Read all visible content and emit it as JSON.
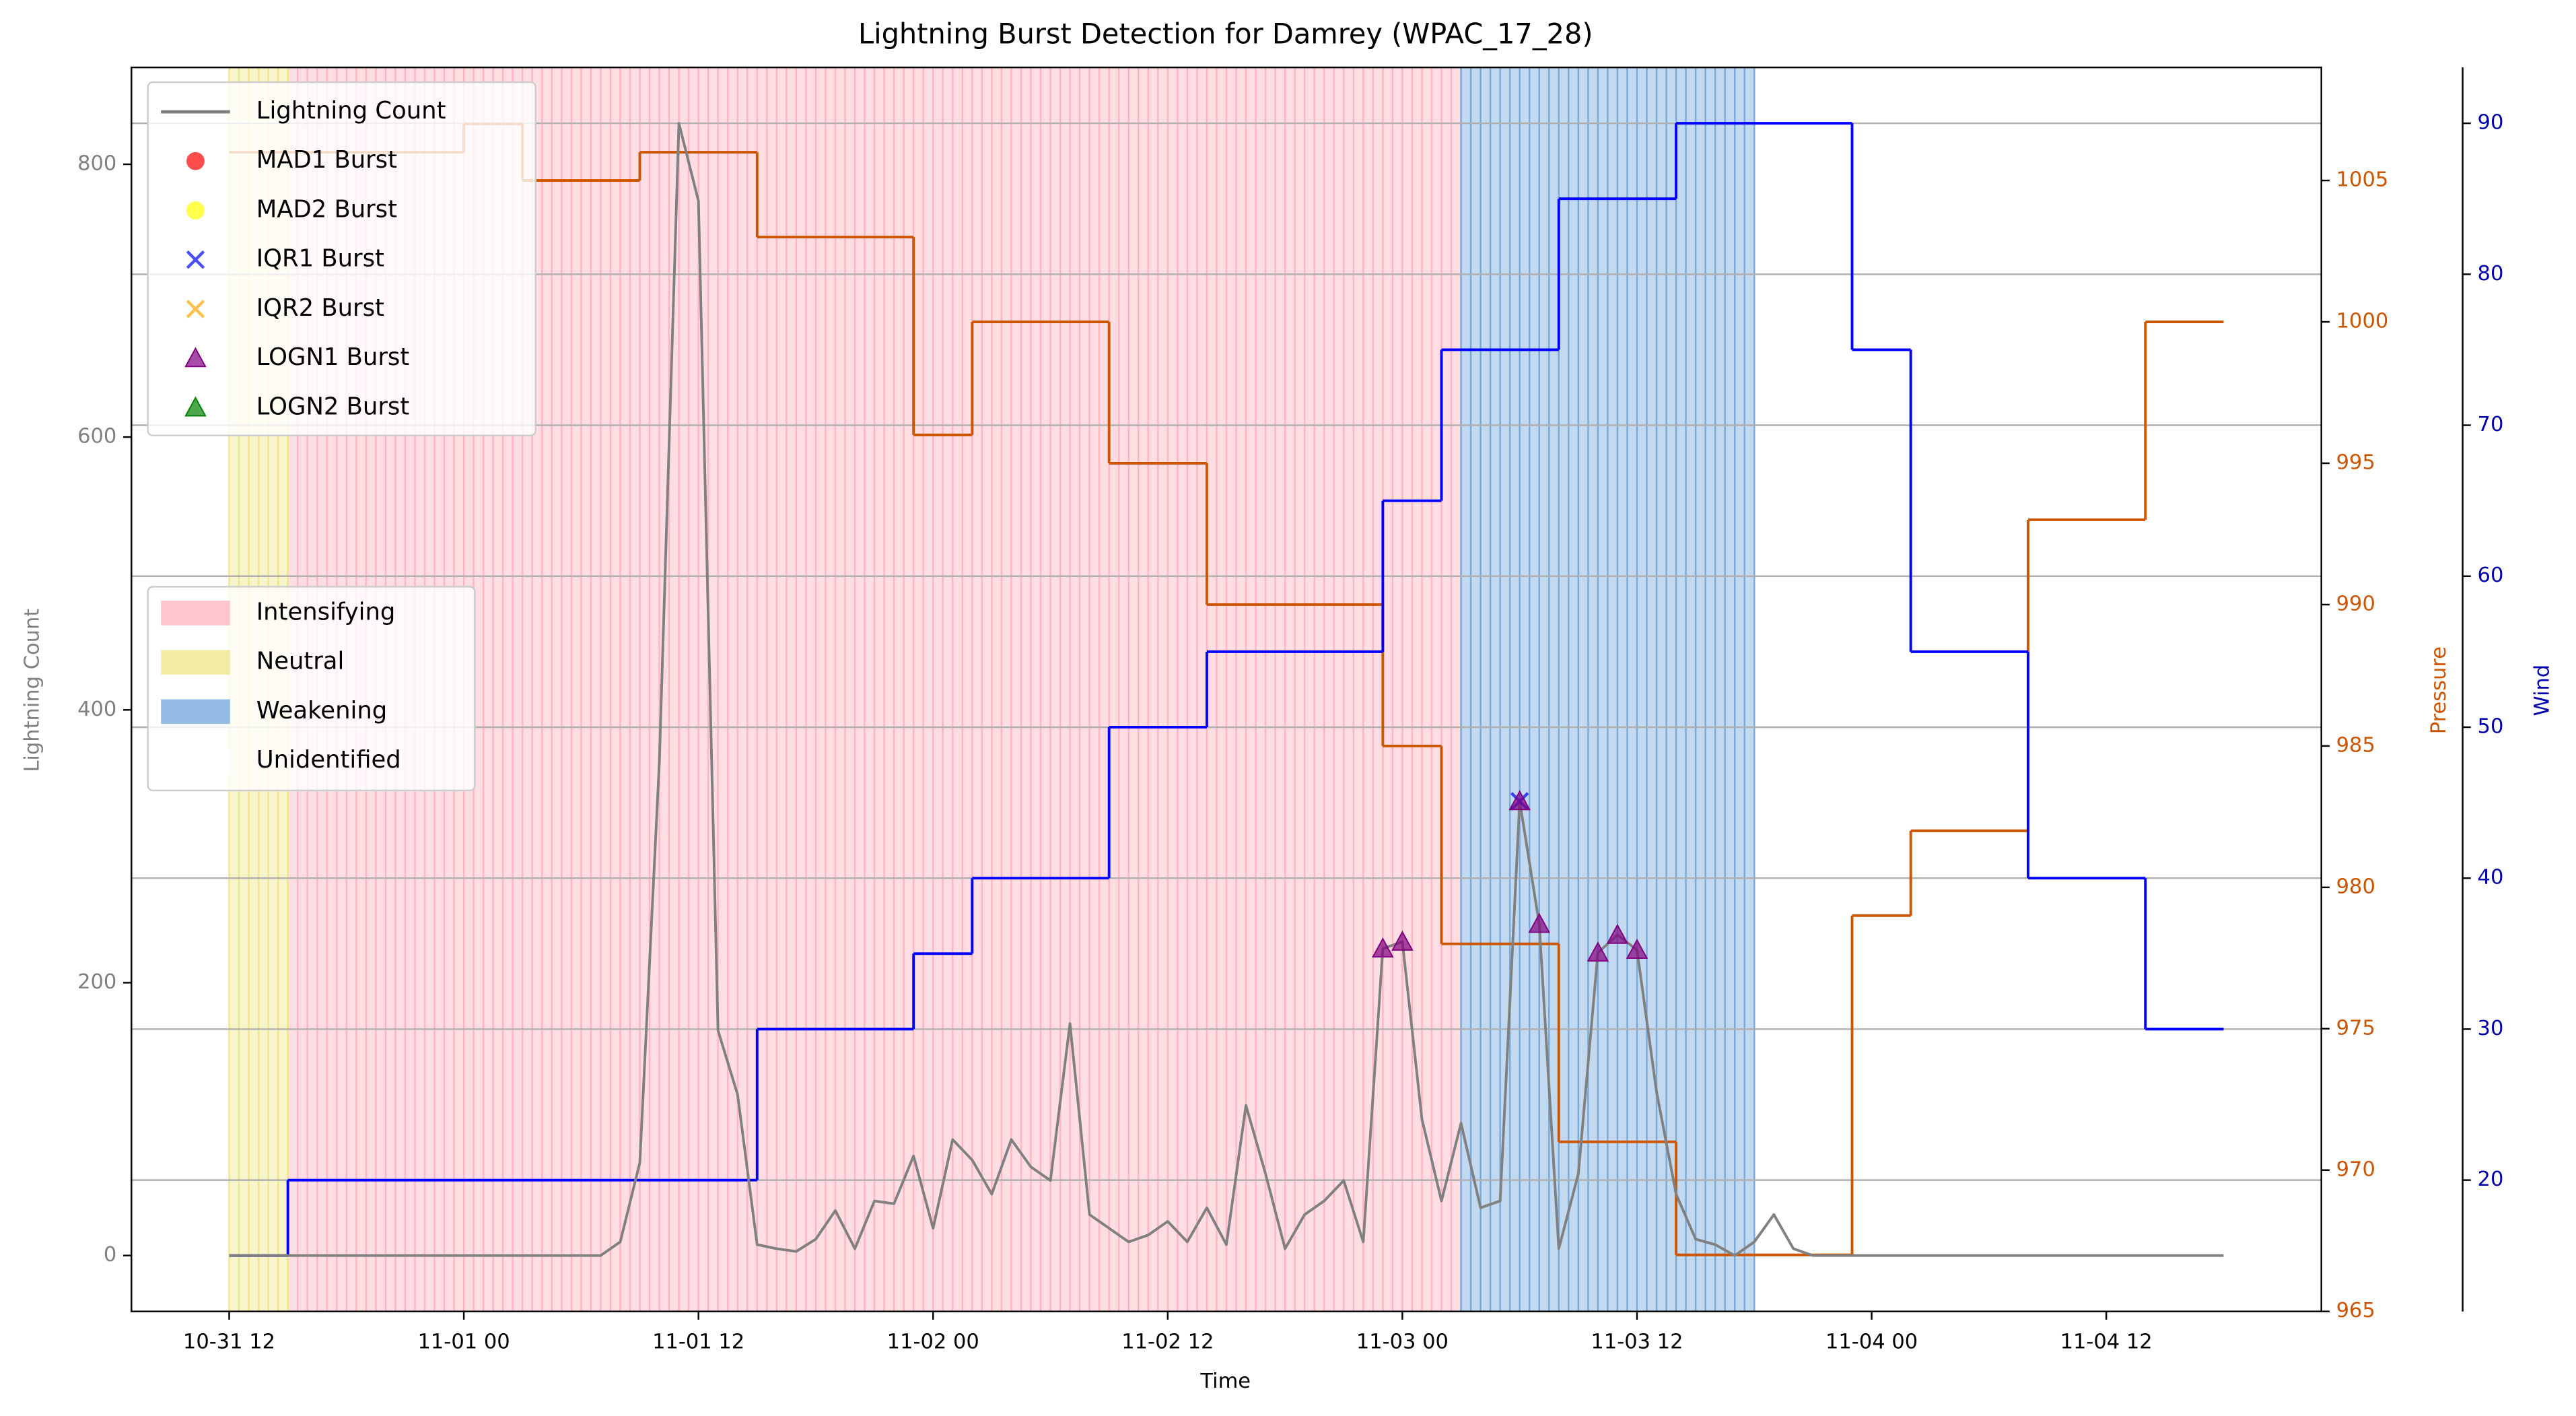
{
  "chart_data": {
    "type": "line",
    "title": "Lightning Burst Detection for Damrey (WPAC_17_28)",
    "xlabel": "Time",
    "ylabel": "Lightning Count",
    "y2label": "Pressure",
    "y3label": "Wind",
    "xlim": [
      "10-31 07",
      "11-04 23"
    ],
    "xticks": [
      "10-31 12",
      "11-01 00",
      "11-01 12",
      "11-02 00",
      "11-02 12",
      "11-03 00",
      "11-03 12",
      "11-04 00",
      "11-04 12"
    ],
    "ylim": [
      -41,
      871
    ],
    "yticks": [
      0,
      200,
      400,
      600,
      800
    ],
    "y2lim": [
      965,
      1009
    ],
    "y2ticks": [
      965,
      970,
      975,
      980,
      985,
      990,
      995,
      1000,
      1005
    ],
    "y3lim": [
      11.3,
      93.7
    ],
    "y3ticks": [
      20,
      30,
      40,
      50,
      60,
      70,
      80,
      90
    ],
    "grid": "y3",
    "series": [
      {
        "name": "Lightning Count",
        "color": "#808080",
        "marker": "line",
        "x": [
          "10-31 12",
          "10-31 13",
          "10-31 14",
          "10-31 15",
          "10-31 16",
          "10-31 17",
          "10-31 18",
          "10-31 19",
          "10-31 20",
          "10-31 21",
          "10-31 22",
          "10-31 23",
          "11-01 00",
          "11-01 01",
          "11-01 02",
          "11-01 03",
          "11-01 04",
          "11-01 05",
          "11-01 06",
          "11-01 07",
          "11-01 08",
          "11-01 09",
          "11-01 10",
          "11-01 11",
          "11-01 12",
          "11-01 13",
          "11-01 14",
          "11-01 15",
          "11-01 16",
          "11-01 17",
          "11-01 18",
          "11-01 19",
          "11-01 20",
          "11-01 21",
          "11-01 22",
          "11-01 23",
          "11-02 00",
          "11-02 01",
          "11-02 02",
          "11-02 03",
          "11-02 04",
          "11-02 05",
          "11-02 06",
          "11-02 07",
          "11-02 08",
          "11-02 09",
          "11-02 10",
          "11-02 11",
          "11-02 12",
          "11-02 13",
          "11-02 14",
          "11-02 15",
          "11-02 16",
          "11-02 17",
          "11-02 18",
          "11-02 19",
          "11-02 20",
          "11-02 21",
          "11-02 22",
          "11-02 23",
          "11-03 00",
          "11-03 01",
          "11-03 02",
          "11-03 03",
          "11-03 04",
          "11-03 05",
          "11-03 06",
          "11-03 07",
          "11-03 08",
          "11-03 09",
          "11-03 10",
          "11-03 11",
          "11-03 12",
          "11-03 13",
          "11-03 14",
          "11-03 15",
          "11-03 16",
          "11-03 17",
          "11-03 18",
          "11-03 19",
          "11-03 20",
          "11-03 21",
          "11-03 22",
          "11-03 23",
          "11-04 00",
          "11-04 01",
          "11-04 02",
          "11-04 03",
          "11-04 04",
          "11-04 05",
          "11-04 06",
          "11-04 07",
          "11-04 08",
          "11-04 09",
          "11-04 10",
          "11-04 11",
          "11-04 12",
          "11-04 13",
          "11-04 14",
          "11-04 15",
          "11-04 16",
          "11-04 17",
          "11-04 18"
        ],
        "values": [
          0,
          0,
          0,
          0,
          0,
          0,
          0,
          0,
          0,
          0,
          0,
          0,
          0,
          0,
          0,
          0,
          0,
          0,
          0,
          0,
          10,
          68,
          362,
          830,
          773,
          165,
          118,
          8,
          5,
          3,
          12,
          33,
          5,
          40,
          38,
          73,
          20,
          85,
          70,
          45,
          85,
          65,
          55,
          170,
          30,
          20,
          10,
          15,
          25,
          10,
          35,
          8,
          110,
          60,
          5,
          30,
          40,
          55,
          10,
          225,
          230,
          100,
          40,
          97,
          35,
          40,
          333,
          243,
          5,
          60,
          222,
          235,
          224,
          120,
          45,
          12,
          8,
          0,
          10,
          30,
          5,
          0,
          0,
          0,
          0,
          0,
          0,
          0,
          0,
          0,
          0,
          0,
          0,
          0,
          0,
          0,
          0,
          0,
          0,
          0,
          0,
          0,
          0
        ]
      },
      {
        "name": "MAD1 Burst",
        "color": "#ff0000",
        "marker": "circle",
        "x": [],
        "values": []
      },
      {
        "name": "MAD2 Burst",
        "color": "#ffff00",
        "marker": "circle",
        "x": [],
        "values": []
      },
      {
        "name": "IQR1 Burst",
        "color": "#0000ff",
        "marker": "cross",
        "x": [
          "11-03 06"
        ],
        "values": [
          333
        ]
      },
      {
        "name": "IQR2 Burst",
        "color": "#ffa500",
        "marker": "cross",
        "x": [],
        "values": []
      },
      {
        "name": "LOGN1 Burst",
        "color": "#800080",
        "marker": "triangle",
        "x": [
          "11-02 23",
          "11-03 00",
          "11-03 06",
          "11-03 07",
          "11-03 10",
          "11-03 11",
          "11-03 12"
        ],
        "values": [
          225,
          230,
          333,
          243,
          222,
          235,
          224
        ]
      },
      {
        "name": "LOGN2 Burst",
        "color": "#008000",
        "marker": "triangle",
        "x": [],
        "values": []
      }
    ],
    "lines": [
      {
        "axis": "y2",
        "color": "#cc5500",
        "step": "post",
        "x": [
          "10-31 12",
          "11-01 00",
          "11-01 03",
          "11-01 09",
          "11-01 15",
          "11-01 23",
          "11-02 02",
          "11-02 09",
          "11-02 14",
          "11-02 23",
          "11-03 02",
          "11-03 08",
          "11-03 14",
          "11-03 23",
          "11-04 02",
          "11-04 08",
          "11-04 14",
          "11-04 18"
        ],
        "values": [
          1006,
          1007,
          1005,
          1006,
          1003,
          996,
          1000,
          995,
          990,
          985,
          978,
          971,
          967,
          979,
          982,
          993,
          1000,
          1000
        ]
      },
      {
        "axis": "y3",
        "color": "#0000ff",
        "step": "post",
        "x": [
          "10-31 12",
          "10-31 15",
          "11-01 15",
          "11-01 23",
          "11-02 02",
          "11-02 09",
          "11-02 14",
          "11-02 23",
          "11-03 02",
          "11-03 08",
          "11-03 14",
          "11-03 23",
          "11-04 02",
          "11-04 08",
          "11-04 14",
          "11-04 18"
        ],
        "values": [
          15,
          20,
          30,
          35,
          40,
          50,
          55,
          65,
          75,
          85,
          90,
          75,
          55,
          40,
          30,
          30
        ]
      }
    ],
    "phases": [
      {
        "name": "Intensifying",
        "color": "#ffb6c1",
        "start": "10-31 15",
        "end": "11-03 03"
      },
      {
        "name": "Neutral",
        "color": "#f0e68c",
        "start": "10-31 12",
        "end": "10-31 15"
      },
      {
        "name": "Weakening",
        "color": "#78aadc",
        "start": "11-03 03",
        "end": "11-03 18"
      },
      {
        "name": "Unidentified",
        "color": "#ffffff"
      }
    ]
  }
}
